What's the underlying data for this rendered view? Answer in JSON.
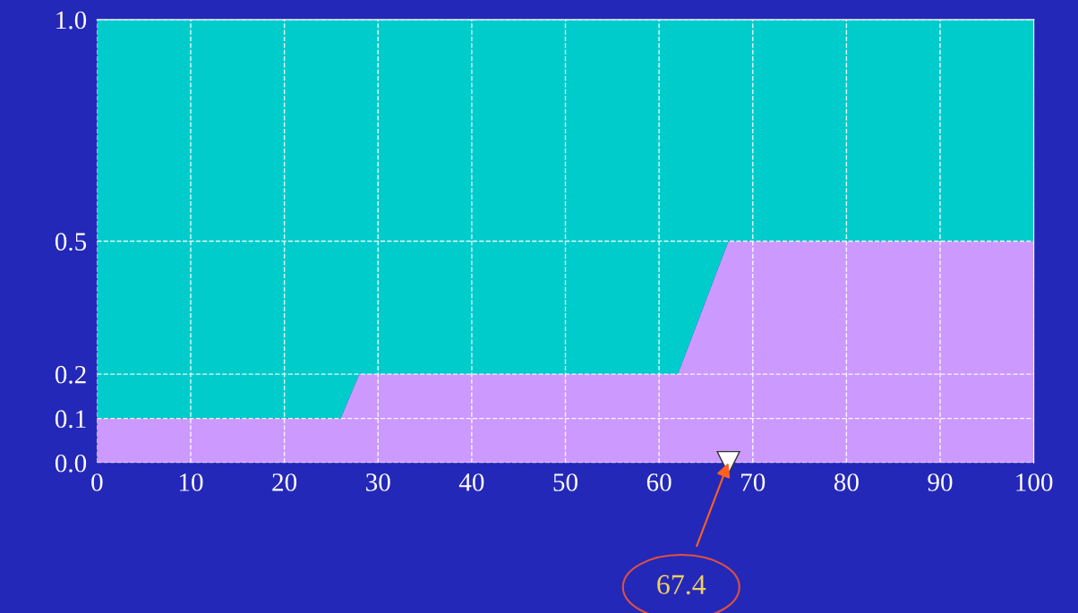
{
  "chart_data": {
    "type": "area",
    "stacked": true,
    "x": [
      0,
      26,
      28,
      62,
      67.4,
      100
    ],
    "series": [
      {
        "color": "#cc99ff",
        "values": [
          0.1,
          0.1,
          0.2,
          0.2,
          0.5,
          0.5
        ]
      },
      {
        "color": "#00cccc",
        "values": [
          0.9,
          0.9,
          0.8,
          0.8,
          0.5,
          0.5
        ]
      }
    ],
    "xlim": [
      0,
      100
    ],
    "xticks": [
      0,
      10,
      20,
      30,
      40,
      50,
      60,
      70,
      80,
      90,
      100
    ],
    "ylim": [
      0,
      1
    ],
    "yticks": [
      {
        "value": 0,
        "label": "0.0"
      },
      0.1,
      0.2,
      0.5,
      {
        "value": 1,
        "label": "1.0"
      }
    ],
    "grid": true,
    "line_style": "dashed",
    "annotations": [
      {
        "text": "67.4",
        "x": 67.4,
        "y": 0
      }
    ]
  }
}
